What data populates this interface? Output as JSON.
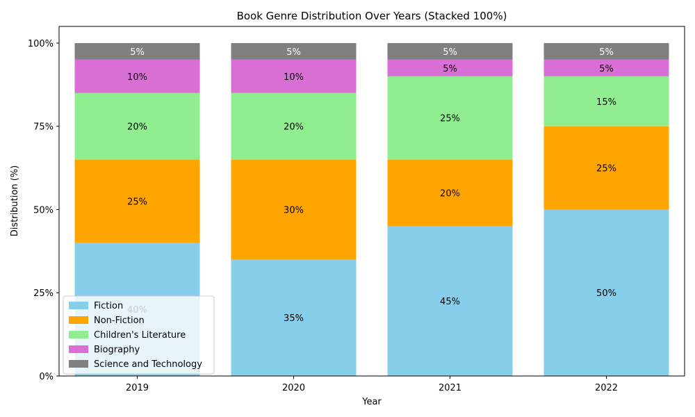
{
  "chart_data": {
    "type": "bar",
    "stacked": true,
    "title": "Book Genre Distribution Over Years (Stacked 100%)",
    "xlabel": "Year",
    "ylabel": "Distribution (%)",
    "categories": [
      "2019",
      "2020",
      "2021",
      "2022"
    ],
    "ylim": [
      0,
      105
    ],
    "yticks": [
      0,
      25,
      50,
      75,
      100
    ],
    "ytick_labels": [
      "0%",
      "25%",
      "50%",
      "75%",
      "100%"
    ],
    "grid": false,
    "legend_position": "bottom-left",
    "series": [
      {
        "name": "Fiction",
        "color": "#87ceeb",
        "values": [
          40,
          35,
          45,
          50
        ],
        "labels": [
          "40%",
          "35%",
          "45%",
          "50%"
        ]
      },
      {
        "name": "Non-Fiction",
        "color": "#ffa500",
        "values": [
          25,
          30,
          20,
          25
        ],
        "labels": [
          "25%",
          "30%",
          "20%",
          "25%"
        ]
      },
      {
        "name": "Children's Literature",
        "color": "#90ee90",
        "values": [
          20,
          20,
          25,
          15
        ],
        "labels": [
          "20%",
          "20%",
          "25%",
          "15%"
        ]
      },
      {
        "name": "Biography",
        "color": "#da70d6",
        "values": [
          10,
          10,
          5,
          5
        ],
        "labels": [
          "10%",
          "10%",
          "5%",
          "5%"
        ]
      },
      {
        "name": "Science and Technology",
        "color": "#808080",
        "values": [
          5,
          5,
          5,
          5
        ],
        "labels": [
          "5%",
          "5%",
          "5%",
          "5%"
        ],
        "label_color": "#ffffff"
      }
    ]
  }
}
